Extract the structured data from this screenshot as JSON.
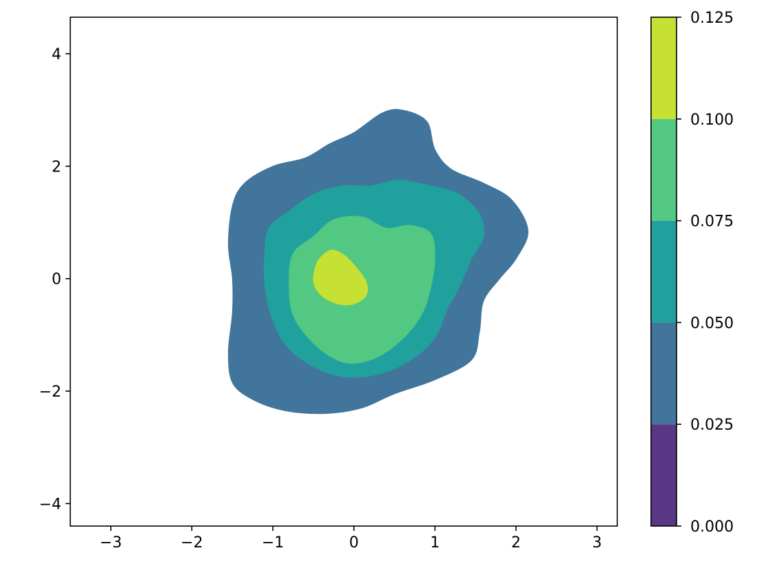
{
  "chart_data": {
    "type": "contourf",
    "title": "",
    "xlabel": "",
    "ylabel": "",
    "xlim": [
      -3.5,
      3.25
    ],
    "ylim": [
      -4.4,
      4.65
    ],
    "x_ticks": [
      -3,
      -2,
      -1,
      0,
      1,
      2,
      3
    ],
    "x_tick_labels": [
      "−3",
      "−2",
      "−1",
      "0",
      "1",
      "2",
      "3"
    ],
    "y_ticks": [
      -4,
      -2,
      0,
      2,
      4
    ],
    "y_tick_labels": [
      "−4",
      "−2",
      "0",
      "2",
      "4"
    ],
    "grid": false,
    "colorbar": {
      "levels": [
        0.0,
        0.025,
        0.05,
        0.075,
        0.1,
        0.125
      ],
      "tick_labels": [
        "0.000",
        "0.025",
        "0.050",
        "0.075",
        "0.100",
        "0.125"
      ],
      "colors": [
        "#5a3785",
        "#42759c",
        "#21a19d",
        "#52c882",
        "#c6e033"
      ]
    },
    "regions": [
      {
        "level_range": [
          0.025,
          0.05
        ],
        "color": "#42759c",
        "outline": [
          [
            -1.35,
            1.7
          ],
          [
            -1.0,
            2.0
          ],
          [
            -0.6,
            2.15
          ],
          [
            -0.3,
            2.4
          ],
          [
            0.0,
            2.6
          ],
          [
            0.35,
            2.95
          ],
          [
            0.6,
            3.0
          ],
          [
            0.9,
            2.8
          ],
          [
            1.0,
            2.3
          ],
          [
            1.2,
            1.95
          ],
          [
            1.6,
            1.7
          ],
          [
            1.95,
            1.4
          ],
          [
            2.15,
            0.85
          ],
          [
            2.0,
            0.35
          ],
          [
            1.8,
            0.0
          ],
          [
            1.6,
            -0.4
          ],
          [
            1.55,
            -0.95
          ],
          [
            1.45,
            -1.45
          ],
          [
            1.0,
            -1.8
          ],
          [
            0.5,
            -2.05
          ],
          [
            0.1,
            -2.3
          ],
          [
            -0.35,
            -2.4
          ],
          [
            -0.85,
            -2.35
          ],
          [
            -1.25,
            -2.15
          ],
          [
            -1.5,
            -1.85
          ],
          [
            -1.55,
            -1.3
          ],
          [
            -1.5,
            -0.6
          ],
          [
            -1.5,
            0.0
          ],
          [
            -1.55,
            0.6
          ],
          [
            -1.5,
            1.3
          ]
        ]
      },
      {
        "level_range": [
          0.05,
          0.075
        ],
        "color": "#21a19d",
        "outline": [
          [
            -0.85,
            1.15
          ],
          [
            -0.5,
            1.5
          ],
          [
            -0.15,
            1.65
          ],
          [
            0.2,
            1.65
          ],
          [
            0.55,
            1.75
          ],
          [
            0.95,
            1.65
          ],
          [
            1.3,
            1.5
          ],
          [
            1.55,
            1.15
          ],
          [
            1.6,
            0.75
          ],
          [
            1.45,
            0.35
          ],
          [
            1.3,
            -0.15
          ],
          [
            1.15,
            -0.55
          ],
          [
            1.0,
            -1.05
          ],
          [
            0.7,
            -1.45
          ],
          [
            0.3,
            -1.7
          ],
          [
            -0.1,
            -1.75
          ],
          [
            -0.45,
            -1.6
          ],
          [
            -0.8,
            -1.25
          ],
          [
            -1.0,
            -0.75
          ],
          [
            -1.1,
            -0.1
          ],
          [
            -1.1,
            0.5
          ],
          [
            -1.05,
            0.9
          ]
        ]
      },
      {
        "level_range": [
          0.075,
          0.1
        ],
        "color": "#52c882",
        "outline": [
          [
            -0.5,
            0.75
          ],
          [
            -0.25,
            1.05
          ],
          [
            0.1,
            1.1
          ],
          [
            0.4,
            0.9
          ],
          [
            0.7,
            0.95
          ],
          [
            0.95,
            0.8
          ],
          [
            1.0,
            0.35
          ],
          [
            0.95,
            -0.15
          ],
          [
            0.85,
            -0.6
          ],
          [
            0.65,
            -1.0
          ],
          [
            0.35,
            -1.35
          ],
          [
            0.05,
            -1.5
          ],
          [
            -0.2,
            -1.45
          ],
          [
            -0.5,
            -1.15
          ],
          [
            -0.75,
            -0.65
          ],
          [
            -0.8,
            -0.05
          ],
          [
            -0.75,
            0.45
          ]
        ]
      },
      {
        "level_range": [
          0.1,
          0.125
        ],
        "color": "#c6e033",
        "outline": [
          [
            -0.45,
            0.3
          ],
          [
            -0.3,
            0.5
          ],
          [
            -0.15,
            0.45
          ],
          [
            0.0,
            0.25
          ],
          [
            0.15,
            -0.05
          ],
          [
            0.15,
            -0.3
          ],
          [
            0.0,
            -0.45
          ],
          [
            -0.2,
            -0.45
          ],
          [
            -0.4,
            -0.3
          ],
          [
            -0.5,
            -0.05
          ]
        ]
      }
    ]
  }
}
